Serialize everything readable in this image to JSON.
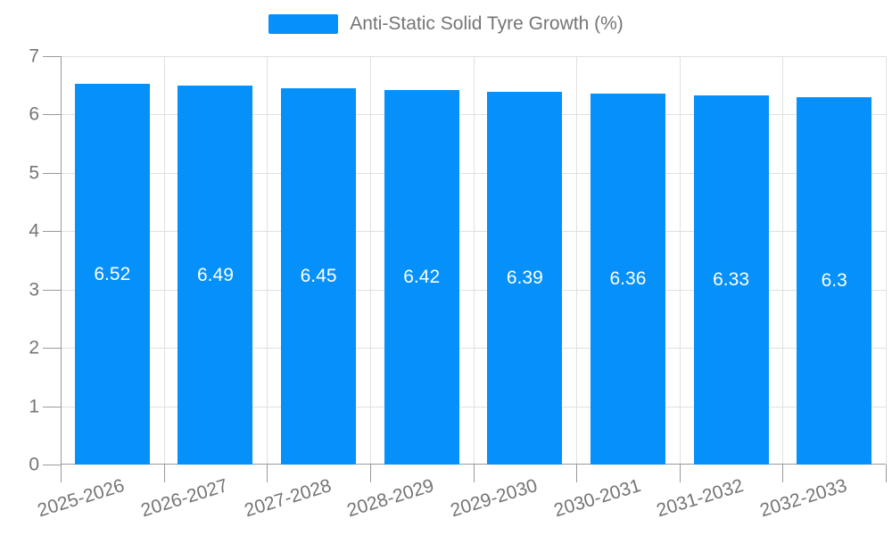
{
  "chart_data": {
    "type": "bar",
    "legend": "Anti-Static Solid Tyre Growth (%)",
    "legend_position": "top-center",
    "categories": [
      "2025-2026",
      "2026-2027",
      "2027-2028",
      "2028-2029",
      "2029-2030",
      "2030-2031",
      "2031-2032",
      "2032-2033"
    ],
    "values": [
      6.52,
      6.49,
      6.45,
      6.42,
      6.39,
      6.36,
      6.33,
      6.3
    ],
    "value_labels": [
      "6.52",
      "6.49",
      "6.45",
      "6.42",
      "6.39",
      "6.36",
      "6.33",
      "6.3"
    ],
    "xlabel": "",
    "ylabel": "",
    "ylim": [
      0,
      7
    ],
    "y_ticks": [
      0,
      1,
      2,
      3,
      4,
      5,
      6,
      7
    ],
    "grid": true,
    "x_label_rotation_deg": -17
  },
  "colors": {
    "bar": "#0590FA",
    "bar_label": "#FFFFFF",
    "gridline": "#E0E0E0",
    "axis_line": "#999999",
    "tick": "#999999",
    "axis_text": "#757575",
    "legend_text": "#757575",
    "background": "#FFFFFF"
  }
}
